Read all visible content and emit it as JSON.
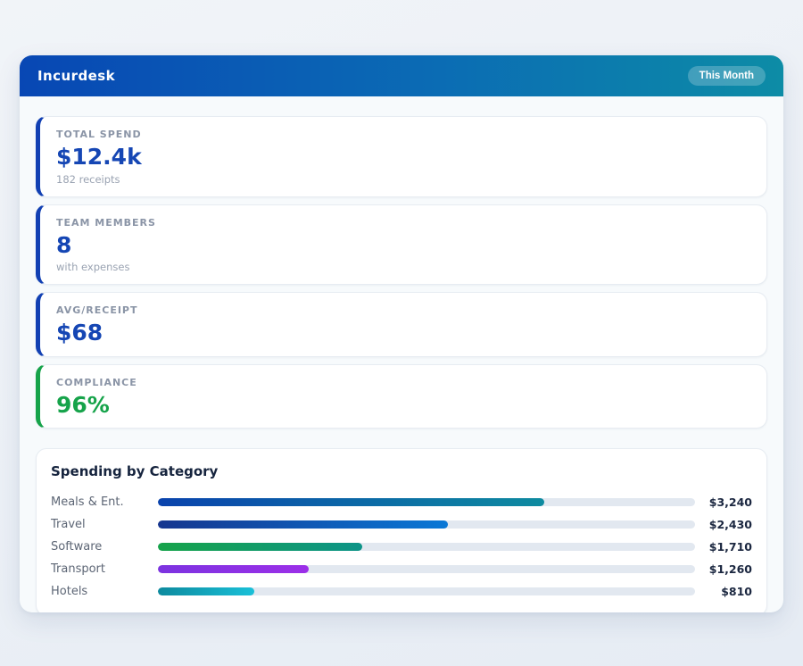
{
  "header": {
    "title": "Incurdesk",
    "badge": "This Month",
    "gradient_start": "#0847b4",
    "gradient_end": "#0d8ca6"
  },
  "stats": [
    {
      "label": "TOTAL SPEND",
      "value": "$12.4k",
      "sub": "182 receipts",
      "accent": "#1240b3",
      "value_color": "#1546b4"
    },
    {
      "label": "TEAM MEMBERS",
      "value": "8",
      "sub": "with expenses",
      "accent": "#1240b3",
      "value_color": "#1546b4"
    },
    {
      "label": "AVG/RECEIPT",
      "value": "$68",
      "sub": "",
      "accent": "#1240b3",
      "value_color": "#1546b4"
    },
    {
      "label": "COMPLIANCE",
      "value": "96%",
      "sub": "",
      "accent": "#16a34a",
      "value_color": "#16a34a"
    }
  ],
  "chart_data": {
    "type": "bar",
    "orientation": "horizontal",
    "title": "Spending by Category",
    "categories": [
      "Meals & Ent.",
      "Travel",
      "Software",
      "Transport",
      "Hotels"
    ],
    "values": [
      3240,
      2430,
      1710,
      1260,
      810
    ],
    "value_labels": [
      "$3,240",
      "$2,430",
      "$1,710",
      "$1,260",
      "$810"
    ],
    "scale_max": 4500,
    "track_color": "#e2e8f0",
    "bar_gradients": [
      [
        "#0a43ad",
        "#0e8ba0"
      ],
      [
        "#16368f",
        "#0a78d6"
      ],
      [
        "#16a34a",
        "#0d9488"
      ],
      [
        "#7c33e0",
        "#9c2fe8"
      ],
      [
        "#0d8a9e",
        "#1ac0d8"
      ]
    ]
  }
}
